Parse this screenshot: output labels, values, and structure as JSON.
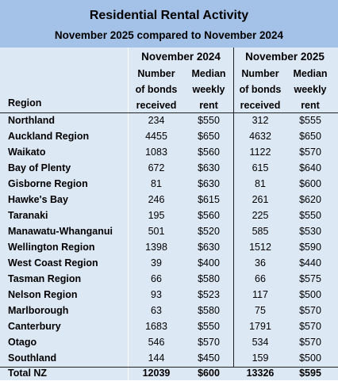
{
  "title": "Residential Rental Activity",
  "subtitle": "November 2025 compared to November 2024",
  "periods": [
    "November 2024",
    "November 2025"
  ],
  "column_headers": {
    "bonds": [
      "Number",
      "of bonds",
      "received"
    ],
    "rent": [
      "Median",
      "weekly",
      "rent"
    ]
  },
  "region_header": "Region",
  "rows": [
    {
      "region": "Northland",
      "b2024": "234",
      "r2024": "$550",
      "b2025": "312",
      "r2025": "$555"
    },
    {
      "region": "Auckland Region",
      "b2024": "4455",
      "r2024": "$650",
      "b2025": "4632",
      "r2025": "$650"
    },
    {
      "region": "Waikato",
      "b2024": "1083",
      "r2024": "$560",
      "b2025": "1122",
      "r2025": "$570"
    },
    {
      "region": "Bay of Plenty",
      "b2024": "672",
      "r2024": "$630",
      "b2025": "615",
      "r2025": "$640"
    },
    {
      "region": "Gisborne Region",
      "b2024": "81",
      "r2024": "$630",
      "b2025": "81",
      "r2025": "$600"
    },
    {
      "region": "Hawke's Bay",
      "b2024": "246",
      "r2024": "$615",
      "b2025": "261",
      "r2025": "$620"
    },
    {
      "region": "Taranaki",
      "b2024": "195",
      "r2024": "$560",
      "b2025": "225",
      "r2025": "$550"
    },
    {
      "region": "Manawatu-Whanganui",
      "b2024": "501",
      "r2024": "$520",
      "b2025": "585",
      "r2025": "$530"
    },
    {
      "region": "Wellington Region",
      "b2024": "1398",
      "r2024": "$630",
      "b2025": "1512",
      "r2025": "$590"
    },
    {
      "region": "West Coast Region",
      "b2024": "39",
      "r2024": "$400",
      "b2025": "36",
      "r2025": "$440"
    },
    {
      "region": "Tasman Region",
      "b2024": "66",
      "r2024": "$580",
      "b2025": "66",
      "r2025": "$575"
    },
    {
      "region": "Nelson Region",
      "b2024": "93",
      "r2024": "$523",
      "b2025": "117",
      "r2025": "$500"
    },
    {
      "region": "Marlborough",
      "b2024": "63",
      "r2024": "$580",
      "b2025": "75",
      "r2025": "$570"
    },
    {
      "region": "Canterbury",
      "b2024": "1683",
      "r2024": "$550",
      "b2025": "1791",
      "r2025": "$570"
    },
    {
      "region": "Otago",
      "b2024": "546",
      "r2024": "$570",
      "b2025": "534",
      "r2025": "$570"
    },
    {
      "region": "Southland",
      "b2024": "144",
      "r2024": "$450",
      "b2025": "159",
      "r2025": "$500"
    }
  ],
  "total": {
    "region": "Total NZ",
    "b2024": "12039",
    "r2024": "$600",
    "b2025": "13326",
    "r2025": "$595"
  }
}
